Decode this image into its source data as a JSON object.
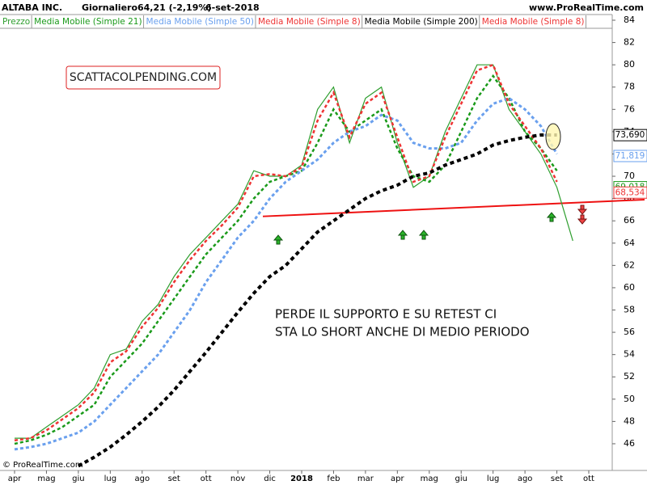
{
  "header": {
    "symbol": "ALTABA INC.",
    "period": "Giornaliero",
    "quote": "64,21 (-2,19%)",
    "date": "6-set-2018",
    "site": "www.ProRealTime.com",
    "copyright": "© ProRealTime.com"
  },
  "annotations": {
    "watermark": "SCATTACOLPENDING.COM",
    "comment_line1": "PERDE IL SUPPORTO E SU RETEST CI",
    "comment_line2": "STA LO SHORT ANCHE DI MEDIO PERIODO"
  },
  "chart_data": {
    "type": "line",
    "categories": [
      "apr",
      null,
      "mag",
      null,
      "giu",
      null,
      "lug",
      null,
      "ago",
      null,
      "set",
      null,
      "ott",
      null,
      "nov",
      null,
      "dic",
      null,
      "2018",
      null,
      "feb",
      null,
      "mar",
      null,
      "apr",
      null,
      "mag",
      null,
      "giu",
      null,
      "lug",
      null,
      "ago",
      null,
      "set",
      null,
      "ott"
    ],
    "series": [
      {
        "name": "Prezzo",
        "color": "#2e9e2e",
        "values": [
          46.5,
          46.5,
          47.5,
          48.5,
          49.5,
          51,
          54,
          54.5,
          57,
          58.5,
          61,
          63,
          64.5,
          66,
          67.5,
          70.5,
          70,
          70,
          71,
          76,
          78,
          73,
          77,
          78,
          73,
          69,
          70,
          74,
          77,
          80,
          80,
          76,
          74,
          72,
          69,
          64.21,
          null
        ]
      },
      {
        "name": "Media Mobile (Simple 21)",
        "color": "#1a9a1a",
        "values": [
          46,
          46.3,
          46.8,
          47.5,
          48.5,
          49.5,
          52,
          53.5,
          55,
          57,
          59,
          61,
          63,
          64.5,
          66,
          68,
          69.5,
          70,
          70.5,
          73,
          76,
          74,
          75,
          76,
          72.5,
          70,
          69.5,
          71,
          74,
          77,
          79,
          77,
          74,
          72.5,
          70.5,
          null,
          null
        ]
      },
      {
        "name": "Media Mobile (Simple 50)",
        "color": "#6aa0ee",
        "values": [
          45.5,
          45.7,
          46,
          46.5,
          47,
          48,
          49.5,
          51,
          52.5,
          54,
          56,
          58,
          60.5,
          62.5,
          64.5,
          66,
          68,
          69.5,
          70.5,
          71.5,
          73,
          74,
          74.5,
          75.5,
          75,
          73,
          72.5,
          72.5,
          73,
          75,
          76.5,
          77,
          76,
          74.5,
          72,
          null,
          null
        ]
      },
      {
        "name": "Media Mobile (Simple 8)",
        "color": "#ee3333",
        "values": [
          46.3,
          46.5,
          47.2,
          48.2,
          49.2,
          50.6,
          53.3,
          54.3,
          56.5,
          58.2,
          60.5,
          62.5,
          64.2,
          65.6,
          67.2,
          70,
          70.2,
          70,
          70.8,
          75,
          77.5,
          73.5,
          76.5,
          77.5,
          73.5,
          69.5,
          70,
          73.5,
          76.5,
          79.5,
          80,
          76.5,
          74.5,
          72.5,
          69.5,
          null,
          null
        ]
      },
      {
        "name": "Media Mobile (Simple 200)",
        "color": "#000000",
        "values": [
          null,
          null,
          null,
          null,
          44,
          44.8,
          45.7,
          46.8,
          48,
          49.3,
          50.8,
          52.5,
          54.2,
          56,
          57.8,
          59.5,
          61,
          62,
          63.5,
          65,
          66,
          67,
          68,
          68.7,
          69.2,
          70,
          70.3,
          71,
          71.5,
          72,
          72.8,
          73.2,
          73.5,
          73.7,
          73.7,
          null,
          null
        ]
      }
    ],
    "extra_legend": {
      "name": "Media Mobile (Simple 8)",
      "color": "#ee3333"
    },
    "support_line": {
      "color": "#ee1111",
      "values": [
        66.4,
        67.9
      ]
    },
    "last_labels": [
      {
        "value": 73.69,
        "label": "73,690",
        "color": "#000000"
      },
      {
        "value": 71.819,
        "label": "71,819",
        "color": "#6aa0ee"
      },
      {
        "value": 69.018,
        "label": "69,018",
        "color": "#1a9a1a"
      },
      {
        "value": 68.534,
        "label": "68,534",
        "color": "#ee3333"
      }
    ],
    "ylim": [
      43.8,
      84.4
    ],
    "yticks": [
      46,
      48,
      50,
      52,
      54,
      56,
      58,
      60,
      62,
      64,
      66,
      68,
      70,
      72,
      74,
      76,
      78,
      80,
      82,
      84
    ]
  }
}
